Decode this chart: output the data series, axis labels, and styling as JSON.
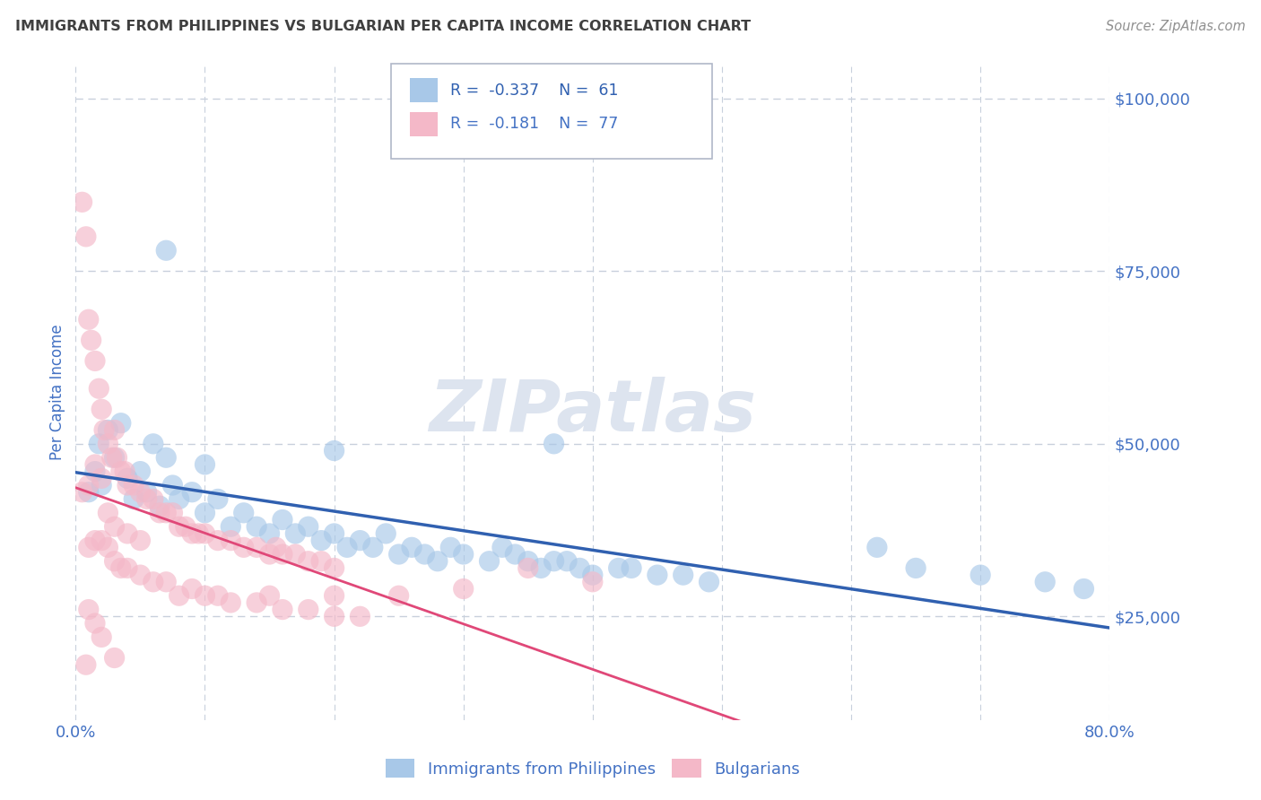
{
  "title": "IMMIGRANTS FROM PHILIPPINES VS BULGARIAN PER CAPITA INCOME CORRELATION CHART",
  "source": "Source: ZipAtlas.com",
  "ylabel": "Per Capita Income",
  "xmin": 0.0,
  "xmax": 80.0,
  "ymin": 10000,
  "ymax": 105000,
  "yticks": [
    25000,
    50000,
    75000,
    100000
  ],
  "ytick_labels": [
    "$25,000",
    "$50,000",
    "$75,000",
    "$100,000"
  ],
  "xtick_vals": [
    0,
    10,
    20,
    30,
    40,
    50,
    60,
    70,
    80
  ],
  "xtick_labels": [
    "0.0%",
    "",
    "",
    "",
    "",
    "",
    "",
    "",
    "80.0%"
  ],
  "blue_color": "#a8c8e8",
  "pink_color": "#f4b8c8",
  "blue_line_color": "#3060b0",
  "pink_line_color": "#e04878",
  "axis_label_color": "#4472c4",
  "title_color": "#404040",
  "source_color": "#909090",
  "watermark_color": "#dde4ef",
  "background_color": "#ffffff",
  "grid_color": "#c8d0dc",
  "blue_points": [
    [
      1.0,
      43000
    ],
    [
      1.5,
      46000
    ],
    [
      1.8,
      50000
    ],
    [
      2.0,
      44000
    ],
    [
      2.5,
      52000
    ],
    [
      3.0,
      48000
    ],
    [
      3.5,
      53000
    ],
    [
      4.0,
      45000
    ],
    [
      4.5,
      42000
    ],
    [
      5.0,
      46000
    ],
    [
      5.5,
      43000
    ],
    [
      6.0,
      50000
    ],
    [
      6.5,
      41000
    ],
    [
      7.0,
      48000
    ],
    [
      7.5,
      44000
    ],
    [
      8.0,
      42000
    ],
    [
      9.0,
      43000
    ],
    [
      10.0,
      40000
    ],
    [
      11.0,
      42000
    ],
    [
      12.0,
      38000
    ],
    [
      13.0,
      40000
    ],
    [
      14.0,
      38000
    ],
    [
      15.0,
      37000
    ],
    [
      16.0,
      39000
    ],
    [
      17.0,
      37000
    ],
    [
      18.0,
      38000
    ],
    [
      19.0,
      36000
    ],
    [
      20.0,
      37000
    ],
    [
      21.0,
      35000
    ],
    [
      22.0,
      36000
    ],
    [
      23.0,
      35000
    ],
    [
      24.0,
      37000
    ],
    [
      25.0,
      34000
    ],
    [
      26.0,
      35000
    ],
    [
      27.0,
      34000
    ],
    [
      28.0,
      33000
    ],
    [
      29.0,
      35000
    ],
    [
      30.0,
      34000
    ],
    [
      32.0,
      33000
    ],
    [
      33.0,
      35000
    ],
    [
      34.0,
      34000
    ],
    [
      35.0,
      33000
    ],
    [
      36.0,
      32000
    ],
    [
      37.0,
      33000
    ],
    [
      38.0,
      33000
    ],
    [
      39.0,
      32000
    ],
    [
      40.0,
      31000
    ],
    [
      42.0,
      32000
    ],
    [
      43.0,
      32000
    ],
    [
      45.0,
      31000
    ],
    [
      47.0,
      31000
    ],
    [
      49.0,
      30000
    ],
    [
      10.0,
      47000
    ],
    [
      20.0,
      49000
    ],
    [
      7.0,
      78000
    ],
    [
      37.0,
      50000
    ],
    [
      62.0,
      35000
    ],
    [
      65.0,
      32000
    ],
    [
      70.0,
      31000
    ],
    [
      75.0,
      30000
    ],
    [
      78.0,
      29000
    ]
  ],
  "pink_points": [
    [
      0.5,
      85000
    ],
    [
      0.8,
      80000
    ],
    [
      1.0,
      68000
    ],
    [
      1.2,
      65000
    ],
    [
      1.5,
      62000
    ],
    [
      1.8,
      58000
    ],
    [
      2.0,
      55000
    ],
    [
      2.2,
      52000
    ],
    [
      2.5,
      50000
    ],
    [
      2.8,
      48000
    ],
    [
      3.0,
      52000
    ],
    [
      3.2,
      48000
    ],
    [
      3.5,
      46000
    ],
    [
      3.8,
      46000
    ],
    [
      4.0,
      44000
    ],
    [
      4.5,
      44000
    ],
    [
      5.0,
      43000
    ],
    [
      5.5,
      42000
    ],
    [
      6.0,
      42000
    ],
    [
      6.5,
      40000
    ],
    [
      7.0,
      40000
    ],
    [
      7.5,
      40000
    ],
    [
      8.0,
      38000
    ],
    [
      8.5,
      38000
    ],
    [
      9.0,
      37000
    ],
    [
      9.5,
      37000
    ],
    [
      10.0,
      37000
    ],
    [
      11.0,
      36000
    ],
    [
      12.0,
      36000
    ],
    [
      13.0,
      35000
    ],
    [
      14.0,
      35000
    ],
    [
      15.0,
      34000
    ],
    [
      15.5,
      35000
    ],
    [
      16.0,
      34000
    ],
    [
      17.0,
      34000
    ],
    [
      18.0,
      33000
    ],
    [
      19.0,
      33000
    ],
    [
      20.0,
      32000
    ],
    [
      0.5,
      43000
    ],
    [
      1.0,
      44000
    ],
    [
      1.5,
      47000
    ],
    [
      2.0,
      45000
    ],
    [
      2.5,
      40000
    ],
    [
      3.0,
      38000
    ],
    [
      4.0,
      37000
    ],
    [
      5.0,
      36000
    ],
    [
      1.0,
      35000
    ],
    [
      1.5,
      36000
    ],
    [
      2.0,
      36000
    ],
    [
      2.5,
      35000
    ],
    [
      3.0,
      33000
    ],
    [
      3.5,
      32000
    ],
    [
      4.0,
      32000
    ],
    [
      5.0,
      31000
    ],
    [
      6.0,
      30000
    ],
    [
      7.0,
      30000
    ],
    [
      8.0,
      28000
    ],
    [
      9.0,
      29000
    ],
    [
      10.0,
      28000
    ],
    [
      11.0,
      28000
    ],
    [
      12.0,
      27000
    ],
    [
      14.0,
      27000
    ],
    [
      16.0,
      26000
    ],
    [
      18.0,
      26000
    ],
    [
      20.0,
      25000
    ],
    [
      22.0,
      25000
    ],
    [
      1.0,
      26000
    ],
    [
      1.5,
      24000
    ],
    [
      2.0,
      22000
    ],
    [
      3.0,
      19000
    ],
    [
      0.8,
      18000
    ],
    [
      35.0,
      32000
    ],
    [
      40.0,
      30000
    ],
    [
      30.0,
      29000
    ],
    [
      25.0,
      28000
    ],
    [
      20.0,
      28000
    ],
    [
      15.0,
      28000
    ]
  ]
}
